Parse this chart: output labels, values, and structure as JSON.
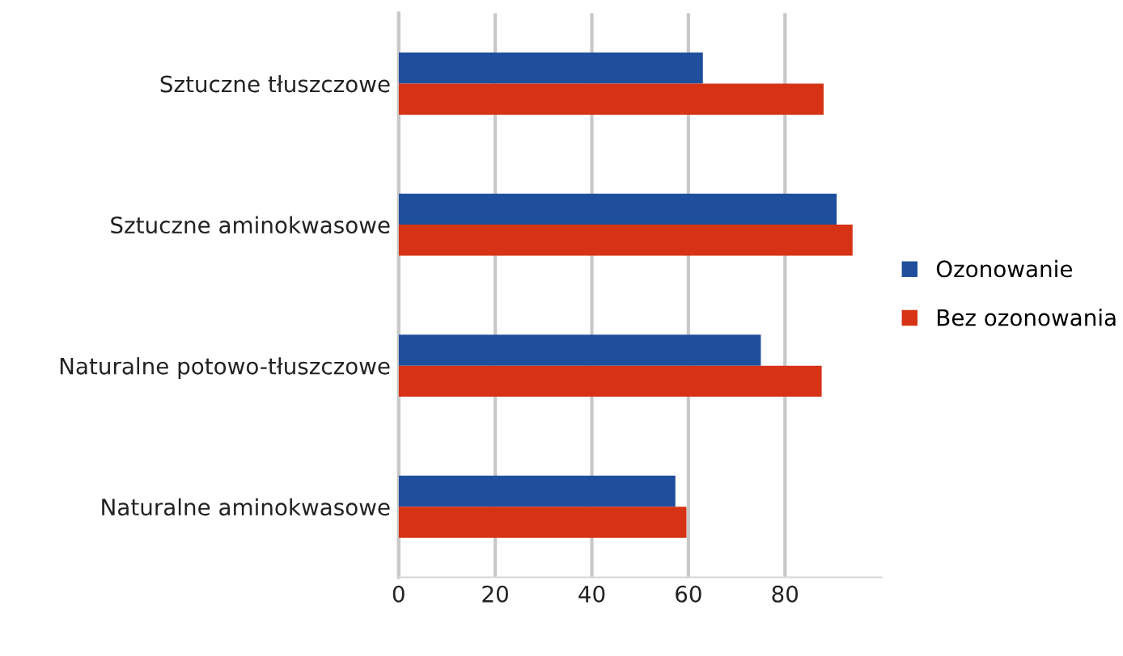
{
  "chart_data": {
    "type": "bar",
    "orientation": "horizontal",
    "categories": [
      "Sztuczne tłuszczowe",
      "Sztuczne aminokwasowe",
      "Naturalne potowo-tłuszczowe",
      "Naturalne aminokwasowe"
    ],
    "series": [
      {
        "name": "Ozonowanie",
        "color": "#1f4e9c",
        "values": [
          63,
          90.7,
          75,
          57.3
        ]
      },
      {
        "name": "Bez ozonowania",
        "color": "#d63316",
        "values": [
          88,
          94,
          87.6,
          59.6
        ]
      }
    ],
    "xlim": [
      0,
      100
    ],
    "xticks": [
      0,
      20,
      40,
      60,
      80
    ],
    "grid": "x",
    "legend": "right"
  }
}
